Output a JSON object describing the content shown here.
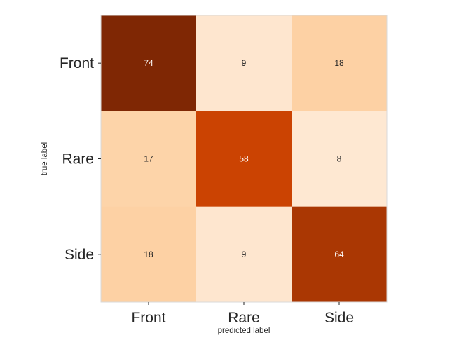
{
  "chart_data": {
    "type": "heatmap",
    "title": "",
    "xlabel": "predicted label",
    "ylabel": "true label",
    "x_categories": [
      "Front",
      "Rare",
      "Side"
    ],
    "y_categories": [
      "Front",
      "Rare",
      "Side"
    ],
    "values": [
      [
        74,
        9,
        18
      ],
      [
        17,
        58,
        8
      ],
      [
        18,
        9,
        64
      ]
    ],
    "colormap": "Oranges",
    "color_range": [
      0,
      74
    ],
    "grid": false,
    "legend": "none",
    "colors": {
      "frame": "#d9d9d9",
      "text_dark": "#262626",
      "text_light": "#ffffff"
    }
  }
}
